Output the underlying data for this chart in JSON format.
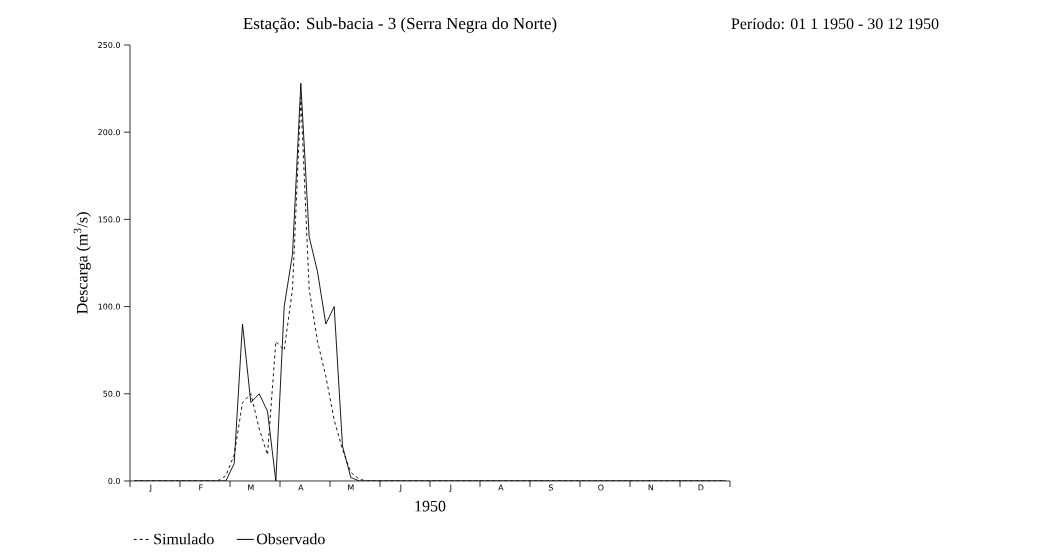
{
  "chart_data": {
    "type": "line",
    "title": "Estação: Sub-bacia - 3 (Serra Negra do Norte)",
    "subtitle": "Período: 01 1 1950 - 30 12 1950",
    "xlabel": "1950",
    "ylabel": "Descarga (m$^{3}$/s)",
    "categories": [
      null,
      null,
      "J",
      null,
      null,
      null,
      null,
      null,
      "F",
      null,
      null,
      null,
      null,
      null,
      "M",
      null,
      null,
      null,
      null,
      null,
      "A",
      null,
      null,
      null,
      null,
      null,
      "M",
      null,
      null,
      null,
      null,
      null,
      "J",
      null,
      null,
      null,
      null,
      null,
      "J",
      null,
      null,
      null,
      null,
      null,
      "A",
      null,
      null,
      null,
      null,
      null,
      "S",
      null,
      null,
      null,
      null,
      null,
      "O",
      null,
      null,
      null,
      null,
      null,
      "N",
      null,
      null,
      null,
      null,
      null,
      "D",
      null,
      null,
      null
    ],
    "ylim": [
      0,
      250
    ],
    "yticks": [
      {
        "value": 0,
        "label": "0.0"
      },
      {
        "value": 50,
        "label": "50.0"
      },
      {
        "value": 100,
        "label": "100.0"
      },
      {
        "value": 150,
        "label": "150.0"
      },
      {
        "value": 200,
        "label": "200.0"
      },
      {
        "value": 250,
        "label": "250.0"
      }
    ],
    "grid": false,
    "legend": "bottom",
    "marker": "none",
    "series": [
      {
        "name": "Simulado",
        "color": "#000000",
        "line_style": "dashed",
        "values": [
          0,
          0,
          0,
          0,
          0,
          0,
          0,
          0,
          0,
          0,
          0,
          3,
          15,
          45,
          50,
          30,
          15,
          80,
          75,
          110,
          220,
          110,
          80,
          60,
          35,
          18,
          5,
          1,
          0,
          0,
          0,
          0,
          0,
          0,
          0,
          0,
          0,
          0,
          0,
          0,
          0,
          0,
          0,
          0,
          0,
          0,
          0,
          0,
          0,
          0,
          0,
          0,
          0,
          0,
          0,
          0,
          0,
          0,
          0,
          0,
          0,
          0,
          0,
          0,
          0,
          0,
          0,
          0,
          0,
          0,
          0,
          0
        ]
      },
      {
        "name": "Observado",
        "color": "#000000",
        "line_style": "solid",
        "values": [
          0,
          0,
          0,
          0,
          0,
          0,
          0,
          0,
          0,
          0,
          0,
          0,
          10,
          90,
          45,
          50,
          40,
          0,
          100,
          130,
          228,
          140,
          120,
          90,
          100,
          20,
          2,
          0,
          0,
          0,
          0,
          0,
          0,
          0,
          0,
          0,
          0,
          0,
          0,
          0,
          0,
          0,
          0,
          0,
          0,
          0,
          0,
          0,
          0,
          0,
          0,
          0,
          0,
          0,
          0,
          0,
          0,
          0,
          0,
          0,
          0,
          0,
          0,
          0,
          0,
          0,
          0,
          0,
          0,
          0,
          0,
          0
        ]
      }
    ]
  }
}
